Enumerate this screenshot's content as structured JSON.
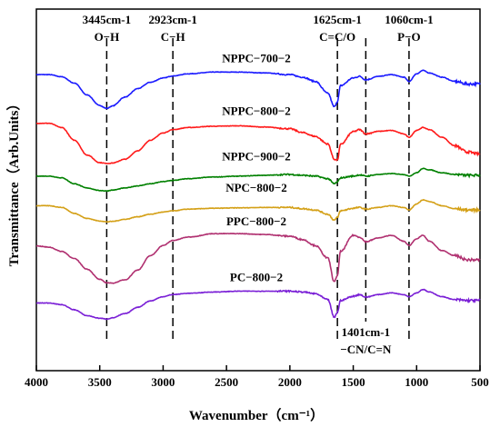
{
  "chart_data": {
    "type": "line",
    "xlabel": "Wavenumber（cm⁻¹）",
    "ylabel": "Transmittance（Arb.Units）",
    "xlim": [
      4000,
      500
    ],
    "x_ticks": [
      4000,
      3500,
      3000,
      2500,
      2000,
      1500,
      1000,
      500
    ],
    "x": [
      4000,
      3900,
      3800,
      3700,
      3600,
      3500,
      3445,
      3400,
      3300,
      3200,
      3100,
      3000,
      2923,
      2800,
      2600,
      2400,
      2200,
      2000,
      1900,
      1800,
      1700,
      1650,
      1625,
      1600,
      1500,
      1450,
      1401,
      1300,
      1200,
      1100,
      1060,
      1000,
      950,
      900,
      800,
      700,
      600,
      500
    ],
    "series": [
      {
        "name": "NPPC−700−2",
        "color": "#1a1aff",
        "offset": 5.0,
        "values": [
          0.8,
          0.8,
          0.75,
          0.6,
          0.32,
          0.07,
          0.0,
          0.06,
          0.27,
          0.47,
          0.62,
          0.72,
          0.77,
          0.82,
          0.86,
          0.86,
          0.84,
          0.8,
          0.74,
          0.64,
          0.36,
          0.04,
          0.16,
          0.54,
          0.72,
          0.76,
          0.68,
          0.76,
          0.8,
          0.74,
          0.64,
          0.82,
          0.9,
          0.84,
          0.74,
          0.64,
          0.58,
          0.58
        ]
      },
      {
        "name": "NPPC−800−2",
        "color": "#ff1a1a",
        "offset": 3.7,
        "values": [
          0.95,
          0.95,
          0.85,
          0.55,
          0.2,
          0.02,
          0.0,
          0.01,
          0.1,
          0.3,
          0.55,
          0.72,
          0.8,
          0.85,
          0.88,
          0.89,
          0.86,
          0.82,
          0.73,
          0.64,
          0.46,
          0.1,
          0.08,
          0.45,
          0.75,
          0.8,
          0.7,
          0.76,
          0.78,
          0.7,
          0.62,
          0.78,
          0.85,
          0.8,
          0.62,
          0.42,
          0.27,
          0.22
        ]
      },
      {
        "name": "NPPC−900−2",
        "color": "#008000",
        "offset": 3.0,
        "values": [
          0.4,
          0.4,
          0.36,
          0.22,
          0.12,
          0.06,
          0.05,
          0.07,
          0.12,
          0.17,
          0.22,
          0.27,
          0.3,
          0.34,
          0.38,
          0.4,
          0.42,
          0.44,
          0.42,
          0.4,
          0.34,
          0.22,
          0.26,
          0.36,
          0.4,
          0.43,
          0.4,
          0.44,
          0.46,
          0.44,
          0.4,
          0.48,
          0.58,
          0.55,
          0.48,
          0.44,
          0.42,
          0.42
        ]
      },
      {
        "name": "NPC−800−2",
        "color": "#d4a017",
        "offset": 2.3,
        "values": [
          0.4,
          0.4,
          0.36,
          0.22,
          0.1,
          0.04,
          0.02,
          0.03,
          0.08,
          0.14,
          0.2,
          0.25,
          0.28,
          0.32,
          0.34,
          0.35,
          0.36,
          0.36,
          0.33,
          0.3,
          0.2,
          0.06,
          0.12,
          0.28,
          0.34,
          0.36,
          0.32,
          0.36,
          0.4,
          0.36,
          0.3,
          0.44,
          0.54,
          0.5,
          0.4,
          0.33,
          0.3,
          0.3
        ]
      },
      {
        "name": "PPC−800−2",
        "color": "#b03070",
        "offset": 0.8,
        "values": [
          0.95,
          0.92,
          0.82,
          0.65,
          0.4,
          0.16,
          0.08,
          0.07,
          0.15,
          0.38,
          0.72,
          0.96,
          1.08,
          1.16,
          1.24,
          1.24,
          1.22,
          1.18,
          1.1,
          0.96,
          0.66,
          0.1,
          0.25,
          0.82,
          1.2,
          1.16,
          1.05,
          1.14,
          1.2,
          1.06,
          0.96,
          1.12,
          1.2,
          1.06,
          0.84,
          0.72,
          0.62,
          0.62
        ]
      },
      {
        "name": "PC−800−2",
        "color": "#7a1fd6",
        "offset": 0.0,
        "values": [
          0.4,
          0.4,
          0.36,
          0.24,
          0.1,
          0.04,
          0.02,
          0.05,
          0.15,
          0.3,
          0.45,
          0.55,
          0.6,
          0.63,
          0.66,
          0.68,
          0.68,
          0.68,
          0.66,
          0.62,
          0.48,
          0.06,
          0.18,
          0.46,
          0.56,
          0.6,
          0.54,
          0.6,
          0.64,
          0.6,
          0.55,
          0.64,
          0.72,
          0.66,
          0.55,
          0.48,
          0.46,
          0.46
        ]
      }
    ],
    "annotations": [
      {
        "x": 3445,
        "line1": "3445cm-1",
        "line2": "O−H",
        "position": "top"
      },
      {
        "x": 2923,
        "line1": "2923cm-1",
        "line2": "C−H",
        "position": "top"
      },
      {
        "x": 1625,
        "line1": "1625cm-1",
        "line2": "C=C/O",
        "position": "top"
      },
      {
        "x": 1060,
        "line1": "1060cm-1",
        "line2": "P−O",
        "position": "top"
      },
      {
        "x": 1401,
        "line1": "1401cm-1",
        "line2": "−CN/C=N",
        "position": "bottom"
      }
    ],
    "grid": false,
    "legend": "inline labels above curves"
  }
}
